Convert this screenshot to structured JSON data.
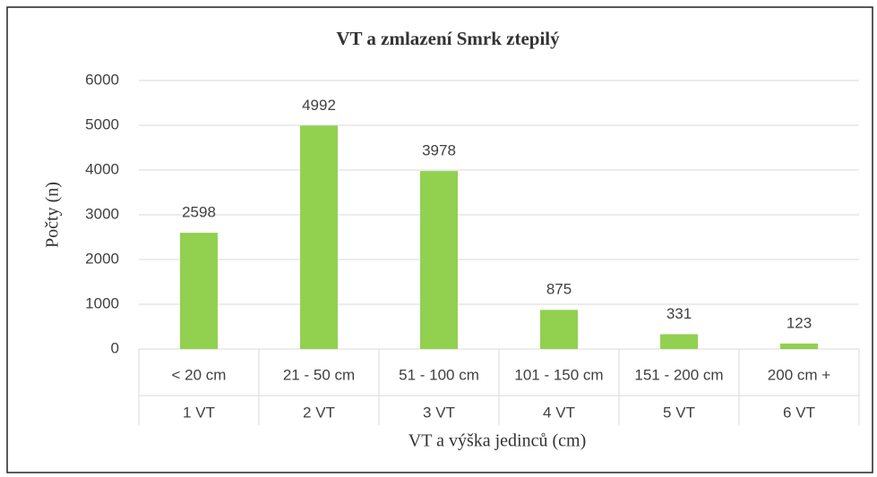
{
  "chart_data": {
    "type": "bar",
    "title": "VT a zmlazení Smrk ztepilý",
    "x_label": "VT a výška jedinců (cm)",
    "y_label": "Počty (n)",
    "categories": [
      [
        "< 20 cm",
        "1 VT"
      ],
      [
        "21 - 50 cm",
        "2 VT"
      ],
      [
        "51 - 100 cm",
        "3 VT"
      ],
      [
        "101 - 150 cm",
        "4 VT"
      ],
      [
        "151 - 200 cm",
        "5 VT"
      ],
      [
        "200 cm +",
        "6 VT"
      ]
    ],
    "values": [
      2598,
      4992,
      3978,
      875,
      331,
      123
    ],
    "color": "#92d050",
    "ylim": [
      0,
      6000
    ],
    "yticks": [
      0,
      1000,
      2000,
      3000,
      4000,
      5000,
      6000
    ],
    "grid": true
  }
}
